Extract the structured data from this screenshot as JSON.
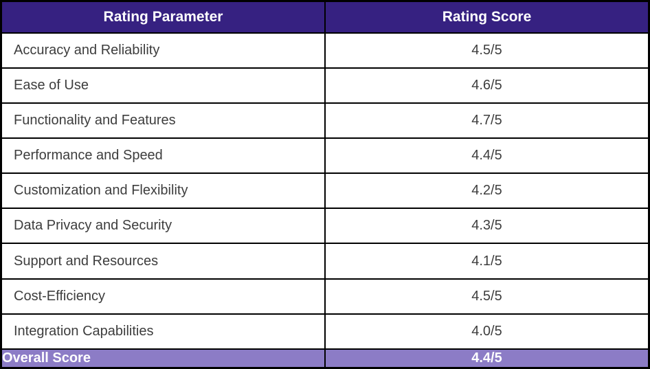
{
  "chart_data": {
    "type": "table",
    "title": "",
    "columns": [
      "Rating Parameter",
      "Rating Score"
    ],
    "rows": [
      {
        "parameter": "Accuracy and Reliability",
        "score": "4.5/5",
        "value": 4.5
      },
      {
        "parameter": "Ease of Use",
        "score": "4.6/5",
        "value": 4.6
      },
      {
        "parameter": "Functionality and Features",
        "score": "4.7/5",
        "value": 4.7
      },
      {
        "parameter": "Performance and Speed",
        "score": "4.4/5",
        "value": 4.4
      },
      {
        "parameter": "Customization and Flexibility",
        "score": "4.2/5",
        "value": 4.2
      },
      {
        "parameter": "Data Privacy and Security",
        "score": "4.3/5",
        "value": 4.3
      },
      {
        "parameter": "Support and Resources",
        "score": "4.1/5",
        "value": 4.1
      },
      {
        "parameter": "Cost-Efficiency",
        "score": "4.5/5",
        "value": 4.5
      },
      {
        "parameter": "Integration Capabilities",
        "score": "4.0/5",
        "value": 4.0
      }
    ],
    "footer": {
      "label": "Overall Score",
      "score": "4.4/5",
      "value": 4.4
    },
    "score_scale": 5
  },
  "colors": {
    "header_bg": "#362181",
    "footer_bg": "#8c7cc6",
    "border": "#000000",
    "header_text": "#ffffff",
    "body_text": "#3d3d3d"
  }
}
